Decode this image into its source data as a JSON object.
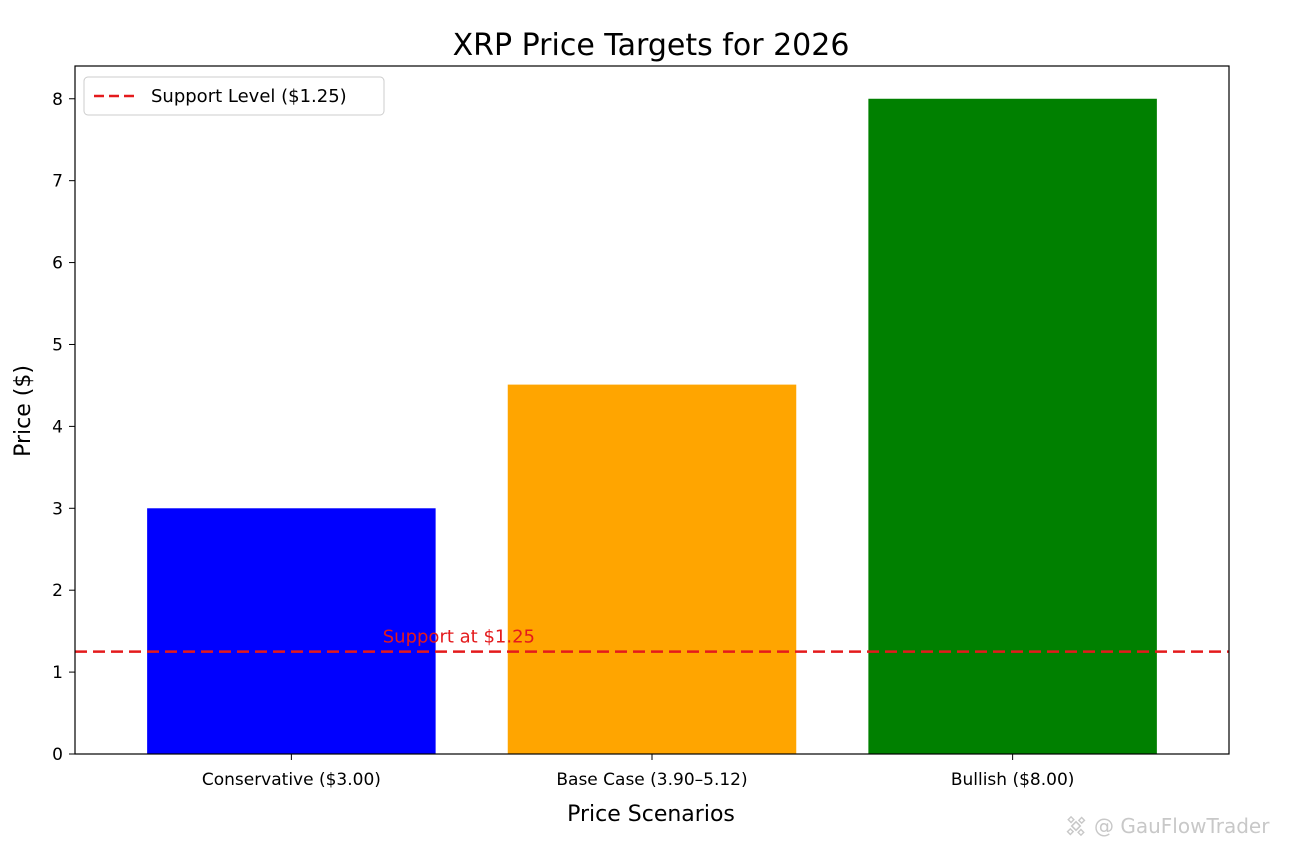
{
  "chart_data": {
    "type": "bar",
    "title": "XRP Price Targets for 2026",
    "xlabel": "Price Scenarios",
    "ylabel": "Price ($)",
    "categories": [
      "Conservative ($3.00)",
      "Base Case (3.90–5.12)",
      "Bullish ($8.00)"
    ],
    "values": [
      3.0,
      4.51,
      8.0
    ],
    "bar_colors": [
      "#0000ff",
      "#ffa500",
      "#008000"
    ],
    "ylim": [
      0,
      8.4
    ],
    "yticks": [
      0,
      1,
      2,
      3,
      4,
      5,
      6,
      7,
      8
    ],
    "grid": false,
    "reference_line": {
      "y": 1.25,
      "style": "dashed",
      "color": "#e41a1c",
      "legend_label": "Support Level ($1.25)",
      "annotation": "Support at $1.25"
    },
    "legend_position": "top-left"
  },
  "watermark": {
    "icon": "binance-logo-icon",
    "text": "@ GauFlowTrader"
  }
}
